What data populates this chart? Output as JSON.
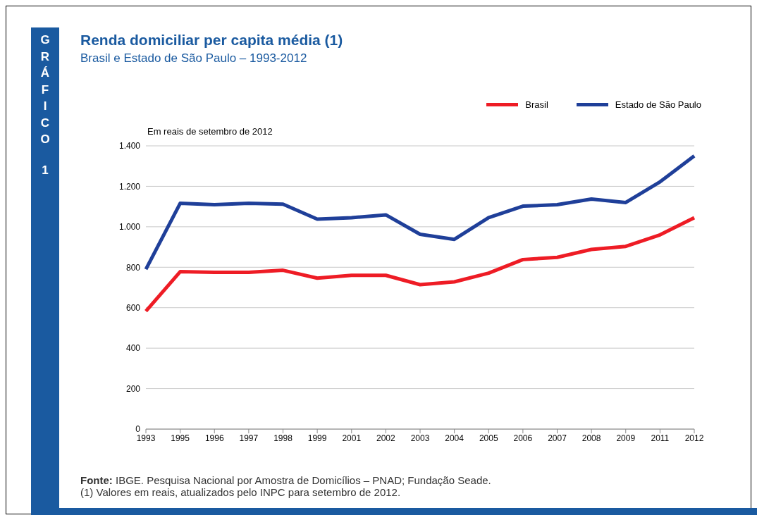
{
  "chart_data": {
    "type": "line",
    "title": "Renda domiciliar per capita média (1)",
    "subtitle": "Brasil e Estado de São Paulo – 1993-2012",
    "ylabel": "Em reais de setembro de 2012",
    "annotations": [
      "GRÁFICO 1",
      "Fonte: IBGE. Pesquisa Nacional por Amostra de Domicílios – PNAD; Fundação Seade.",
      "(1) Valores em reais, atualizados pelo INPC para setembro de 2012."
    ],
    "categories": [
      "1993",
      "1995",
      "1996",
      "1997",
      "1998",
      "1999",
      "2001",
      "2002",
      "2003",
      "2004",
      "2005",
      "2006",
      "2007",
      "2008",
      "2009",
      "2011",
      "2012"
    ],
    "series": [
      {
        "name": "Brasil",
        "color": "#ee1c25",
        "values": [
          583,
          778,
          775,
          775,
          785,
          746,
          760,
          760,
          714,
          728,
          771,
          838,
          849,
          888,
          903,
          960,
          1045
        ]
      },
      {
        "name": "Estado de São Paulo",
        "color": "#1f3f99",
        "values": [
          790,
          1116,
          1109,
          1116,
          1112,
          1038,
          1045,
          1059,
          963,
          938,
          1045,
          1102,
          1109,
          1137,
          1120,
          1222,
          1350
        ]
      }
    ],
    "ylim": [
      0,
      1400
    ],
    "yticks": [
      0,
      200,
      400,
      600,
      800,
      {
        "value": 1000,
        "label": "1.000"
      },
      {
        "value": 1200,
        "label": "1.200"
      },
      {
        "value": 1400,
        "label": "1.400"
      }
    ],
    "grid": "y",
    "legend": "top right",
    "marker": "none",
    "line_style": "solid"
  }
}
